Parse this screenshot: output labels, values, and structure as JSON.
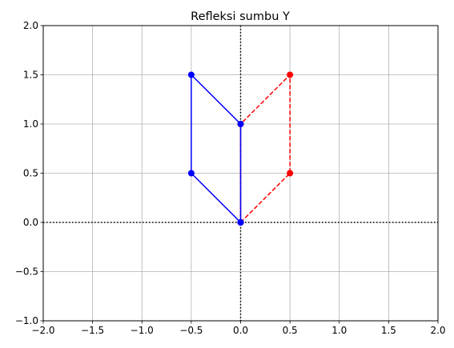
{
  "chart_data": {
    "type": "line",
    "title": "Refleksi sumbu Y",
    "xlabel": "",
    "ylabel": "",
    "xlim": [
      -2.0,
      2.0
    ],
    "ylim": [
      -1.0,
      2.0
    ],
    "grid": true,
    "x_ticks": [
      -2.0,
      -1.5,
      -1.0,
      -0.5,
      0.0,
      0.5,
      1.0,
      1.5,
      2.0
    ],
    "x_tick_labels": [
      "−2.0",
      "−1.5",
      "−1.0",
      "−0.5",
      "0.0",
      "0.5",
      "1.0",
      "1.5",
      "2.0"
    ],
    "y_ticks": [
      -1.0,
      -0.5,
      0.0,
      0.5,
      1.0,
      1.5,
      2.0
    ],
    "y_tick_labels": [
      "−1.0",
      "−0.5",
      "0.0",
      "0.5",
      "1.0",
      "1.5",
      "2.0"
    ],
    "reference_lines": [
      {
        "orientation": "horizontal",
        "value": 0,
        "style": "dotted",
        "color": "#000000"
      },
      {
        "orientation": "vertical",
        "value": 0,
        "style": "dotted",
        "color": "#000000"
      }
    ],
    "series": [
      {
        "color": "#ff0000",
        "linestyle": "dashed",
        "marker": "circle",
        "x": [
          0,
          0.5,
          0.5,
          0,
          0
        ],
        "y": [
          0,
          0.5,
          1.5,
          1.0,
          0
        ]
      },
      {
        "color": "#0000ff",
        "linestyle": "solid",
        "marker": "circle",
        "x": [
          0,
          -0.5,
          -0.5,
          0,
          0
        ],
        "y": [
          0,
          0.5,
          1.5,
          1.0,
          0
        ]
      }
    ]
  }
}
